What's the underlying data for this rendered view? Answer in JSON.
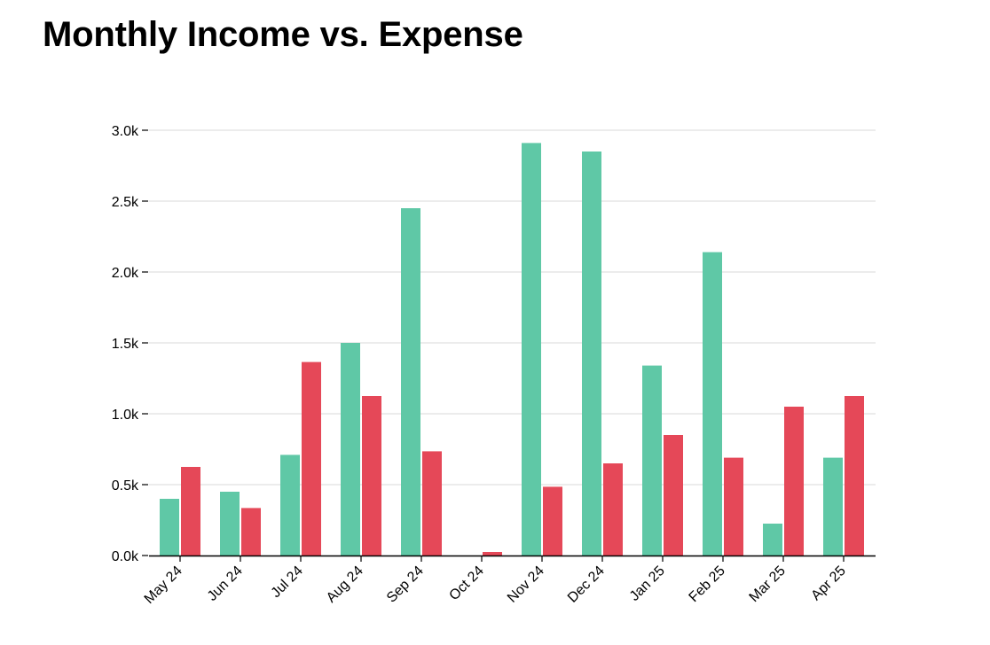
{
  "colors": {
    "income": "#5fc8a6",
    "expense": "#e54858",
    "grid": "#e0e0e0",
    "axis": "#000000"
  },
  "chart_data": {
    "type": "bar",
    "title": "Monthly Income vs. Expense",
    "xlabel": "",
    "ylabel": "",
    "categories": [
      "May 24",
      "Jun 24",
      "Jul 24",
      "Aug 24",
      "Sep 24",
      "Oct 24",
      "Nov 24",
      "Dec 24",
      "Jan 25",
      "Feb 25",
      "Mar 25",
      "Apr 25"
    ],
    "series": [
      {
        "color": "#5fc8a6",
        "values": [
          400,
          450,
          710,
          1500,
          2450,
          0,
          2910,
          2850,
          1340,
          2140,
          225,
          690
        ]
      },
      {
        "color": "#e54858",
        "values": [
          625,
          335,
          1365,
          1125,
          735,
          25,
          485,
          650,
          850,
          690,
          1050,
          1125
        ]
      }
    ],
    "ylim": [
      0,
      3000
    ],
    "yticks": [
      0,
      500,
      1000,
      1500,
      2000,
      2500,
      3000
    ],
    "ytick_labels": [
      "0.0k",
      "0.5k",
      "1.0k",
      "1.5k",
      "2.0k",
      "2.5k",
      "3.0k"
    ],
    "grid": true,
    "legend": "none"
  }
}
